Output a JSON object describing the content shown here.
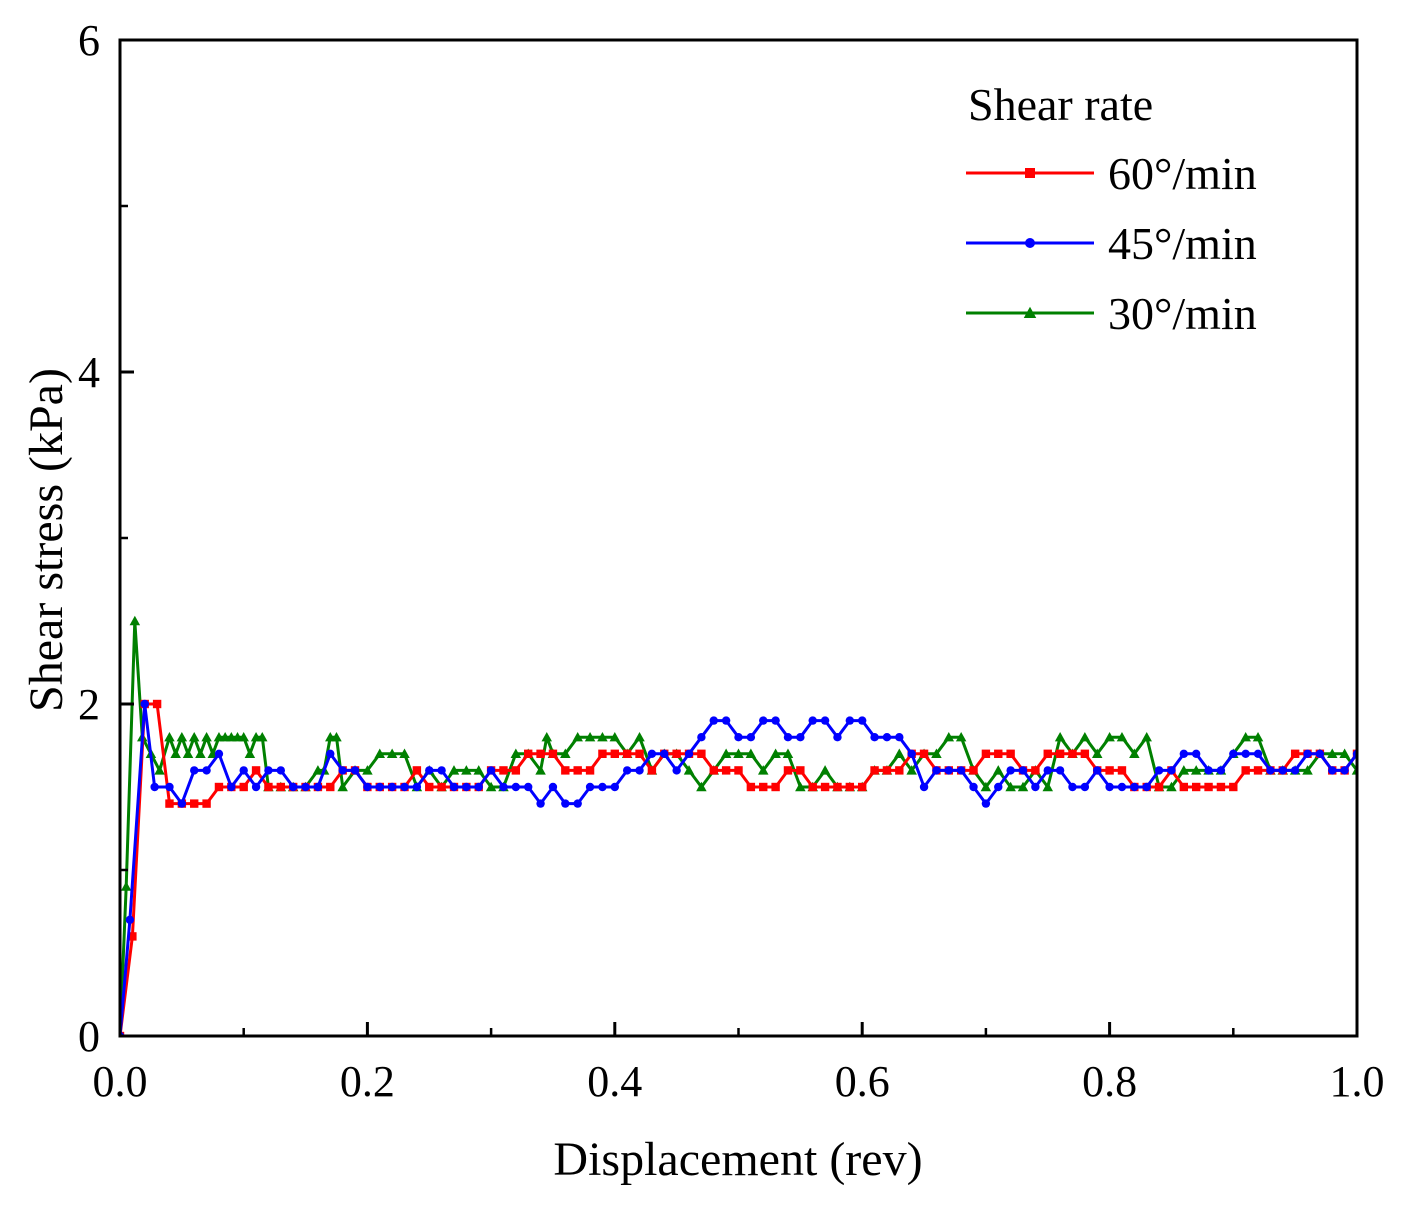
{
  "chart_data": {
    "type": "line",
    "title": "",
    "xlabel": "Displacement (rev)",
    "ylabel": "Shear stress (kPa)",
    "xlim": [
      0,
      1.0
    ],
    "ylim": [
      0,
      6
    ],
    "xticks": [
      0.0,
      0.2,
      0.4,
      0.6,
      0.8,
      1.0
    ],
    "xtick_labels": [
      "0.0",
      "0.2",
      "0.4",
      "0.6",
      "0.8",
      "1.0"
    ],
    "yticks": [
      0,
      2,
      4,
      6
    ],
    "ytick_labels": [
      "0",
      "2",
      "4",
      "6"
    ],
    "grid": false,
    "legend": {
      "title": "Shear rate",
      "position": "top-right"
    },
    "series": [
      {
        "name": "60°/min",
        "color": "#ff0000",
        "marker": "square",
        "x": [
          0,
          0.01,
          0.02,
          0.03,
          0.04,
          0.05,
          0.06,
          0.07,
          0.08,
          0.09,
          0.1,
          0.11,
          0.12,
          0.13,
          0.14,
          0.15,
          0.16,
          0.17,
          0.18,
          0.19,
          0.2,
          0.21,
          0.22,
          0.23,
          0.24,
          0.25,
          0.26,
          0.27,
          0.28,
          0.29,
          0.3,
          0.31,
          0.32,
          0.33,
          0.34,
          0.35,
          0.36,
          0.37,
          0.38,
          0.39,
          0.4,
          0.41,
          0.42,
          0.43,
          0.44,
          0.45,
          0.46,
          0.47,
          0.48,
          0.49,
          0.5,
          0.51,
          0.52,
          0.53,
          0.54,
          0.55,
          0.56,
          0.57,
          0.58,
          0.59,
          0.6,
          0.61,
          0.62,
          0.63,
          0.64,
          0.65,
          0.66,
          0.67,
          0.68,
          0.69,
          0.7,
          0.71,
          0.72,
          0.73,
          0.74,
          0.75,
          0.76,
          0.77,
          0.78,
          0.79,
          0.8,
          0.81,
          0.82,
          0.83,
          0.84,
          0.85,
          0.86,
          0.87,
          0.88,
          0.89,
          0.9,
          0.91,
          0.92,
          0.93,
          0.94,
          0.95,
          0.96,
          0.97,
          0.98,
          0.99,
          1.0
        ],
        "y": [
          0,
          0.6,
          2.0,
          2.0,
          1.4,
          1.4,
          1.4,
          1.4,
          1.5,
          1.5,
          1.5,
          1.6,
          1.5,
          1.5,
          1.5,
          1.5,
          1.5,
          1.5,
          1.6,
          1.6,
          1.5,
          1.5,
          1.5,
          1.5,
          1.6,
          1.5,
          1.5,
          1.5,
          1.5,
          1.5,
          1.6,
          1.6,
          1.6,
          1.7,
          1.7,
          1.7,
          1.6,
          1.6,
          1.6,
          1.7,
          1.7,
          1.7,
          1.7,
          1.6,
          1.7,
          1.7,
          1.7,
          1.7,
          1.6,
          1.6,
          1.6,
          1.5,
          1.5,
          1.5,
          1.6,
          1.6,
          1.5,
          1.5,
          1.5,
          1.5,
          1.5,
          1.6,
          1.6,
          1.6,
          1.7,
          1.7,
          1.6,
          1.6,
          1.6,
          1.6,
          1.7,
          1.7,
          1.7,
          1.6,
          1.6,
          1.7,
          1.7,
          1.7,
          1.7,
          1.6,
          1.6,
          1.6,
          1.5,
          1.5,
          1.5,
          1.6,
          1.5,
          1.5,
          1.5,
          1.5,
          1.5,
          1.6,
          1.6,
          1.6,
          1.6,
          1.7,
          1.7,
          1.7,
          1.6,
          1.6,
          1.7
        ]
      },
      {
        "name": "45°/min",
        "color": "#0000ff",
        "marker": "circle",
        "x": [
          0,
          0.008,
          0.02,
          0.028,
          0.04,
          0.05,
          0.06,
          0.07,
          0.08,
          0.09,
          0.1,
          0.11,
          0.12,
          0.13,
          0.14,
          0.15,
          0.16,
          0.17,
          0.18,
          0.19,
          0.2,
          0.21,
          0.22,
          0.23,
          0.24,
          0.25,
          0.26,
          0.27,
          0.28,
          0.29,
          0.3,
          0.31,
          0.32,
          0.33,
          0.34,
          0.35,
          0.36,
          0.37,
          0.38,
          0.39,
          0.4,
          0.41,
          0.42,
          0.43,
          0.44,
          0.45,
          0.46,
          0.47,
          0.48,
          0.49,
          0.5,
          0.51,
          0.52,
          0.53,
          0.54,
          0.55,
          0.56,
          0.57,
          0.58,
          0.59,
          0.6,
          0.61,
          0.62,
          0.63,
          0.64,
          0.65,
          0.66,
          0.67,
          0.68,
          0.69,
          0.7,
          0.71,
          0.72,
          0.73,
          0.74,
          0.75,
          0.76,
          0.77,
          0.78,
          0.79,
          0.8,
          0.81,
          0.82,
          0.83,
          0.84,
          0.85,
          0.86,
          0.87,
          0.88,
          0.89,
          0.9,
          0.91,
          0.92,
          0.93,
          0.94,
          0.95,
          0.96,
          0.97,
          0.98,
          0.99,
          1.0
        ],
        "y": [
          0,
          0.7,
          2.0,
          1.5,
          1.5,
          1.4,
          1.6,
          1.6,
          1.7,
          1.5,
          1.6,
          1.5,
          1.6,
          1.6,
          1.5,
          1.5,
          1.5,
          1.7,
          1.6,
          1.6,
          1.5,
          1.5,
          1.5,
          1.5,
          1.5,
          1.6,
          1.6,
          1.5,
          1.5,
          1.5,
          1.6,
          1.5,
          1.5,
          1.5,
          1.4,
          1.5,
          1.4,
          1.4,
          1.5,
          1.5,
          1.5,
          1.6,
          1.6,
          1.7,
          1.7,
          1.6,
          1.7,
          1.8,
          1.9,
          1.9,
          1.8,
          1.8,
          1.9,
          1.9,
          1.8,
          1.8,
          1.9,
          1.9,
          1.8,
          1.9,
          1.9,
          1.8,
          1.8,
          1.8,
          1.7,
          1.5,
          1.6,
          1.6,
          1.6,
          1.5,
          1.4,
          1.5,
          1.6,
          1.6,
          1.5,
          1.6,
          1.6,
          1.5,
          1.5,
          1.6,
          1.5,
          1.5,
          1.5,
          1.5,
          1.6,
          1.6,
          1.7,
          1.7,
          1.6,
          1.6,
          1.7,
          1.7,
          1.7,
          1.6,
          1.6,
          1.6,
          1.7,
          1.7,
          1.6,
          1.6,
          1.7
        ]
      },
      {
        "name": "30°/min",
        "color": "#008000",
        "marker": "triangle",
        "x": [
          0,
          0.005,
          0.012,
          0.018,
          0.025,
          0.032,
          0.04,
          0.045,
          0.05,
          0.055,
          0.06,
          0.065,
          0.07,
          0.075,
          0.08,
          0.085,
          0.09,
          0.095,
          0.1,
          0.105,
          0.11,
          0.115,
          0.12,
          0.13,
          0.14,
          0.15,
          0.16,
          0.165,
          0.17,
          0.175,
          0.18,
          0.19,
          0.2,
          0.21,
          0.22,
          0.23,
          0.24,
          0.25,
          0.26,
          0.27,
          0.28,
          0.29,
          0.3,
          0.31,
          0.32,
          0.33,
          0.34,
          0.345,
          0.35,
          0.36,
          0.37,
          0.38,
          0.39,
          0.4,
          0.41,
          0.42,
          0.43,
          0.44,
          0.45,
          0.46,
          0.47,
          0.48,
          0.49,
          0.5,
          0.51,
          0.52,
          0.53,
          0.54,
          0.55,
          0.56,
          0.57,
          0.58,
          0.59,
          0.6,
          0.61,
          0.62,
          0.63,
          0.64,
          0.65,
          0.66,
          0.67,
          0.68,
          0.69,
          0.7,
          0.71,
          0.72,
          0.73,
          0.74,
          0.75,
          0.76,
          0.77,
          0.78,
          0.79,
          0.8,
          0.81,
          0.82,
          0.83,
          0.84,
          0.85,
          0.86,
          0.87,
          0.88,
          0.89,
          0.9,
          0.91,
          0.92,
          0.93,
          0.94,
          0.95,
          0.96,
          0.97,
          0.98,
          0.99,
          1.0
        ],
        "y": [
          0,
          0.9,
          2.5,
          1.8,
          1.7,
          1.6,
          1.8,
          1.7,
          1.8,
          1.7,
          1.8,
          1.7,
          1.8,
          1.7,
          1.8,
          1.8,
          1.8,
          1.8,
          1.8,
          1.7,
          1.8,
          1.8,
          1.5,
          1.5,
          1.5,
          1.5,
          1.6,
          1.6,
          1.8,
          1.8,
          1.5,
          1.6,
          1.6,
          1.7,
          1.7,
          1.7,
          1.5,
          1.6,
          1.5,
          1.6,
          1.6,
          1.6,
          1.5,
          1.5,
          1.7,
          1.7,
          1.6,
          1.8,
          1.7,
          1.7,
          1.8,
          1.8,
          1.8,
          1.8,
          1.7,
          1.8,
          1.6,
          1.7,
          1.7,
          1.6,
          1.5,
          1.6,
          1.7,
          1.7,
          1.7,
          1.6,
          1.7,
          1.7,
          1.5,
          1.5,
          1.6,
          1.5,
          1.5,
          1.5,
          1.6,
          1.6,
          1.7,
          1.6,
          1.7,
          1.7,
          1.8,
          1.8,
          1.6,
          1.5,
          1.6,
          1.5,
          1.5,
          1.6,
          1.5,
          1.8,
          1.7,
          1.8,
          1.7,
          1.8,
          1.8,
          1.7,
          1.8,
          1.5,
          1.5,
          1.6,
          1.6,
          1.6,
          1.6,
          1.7,
          1.8,
          1.8,
          1.6,
          1.6,
          1.6,
          1.6,
          1.7,
          1.7,
          1.7,
          1.6
        ]
      }
    ]
  }
}
